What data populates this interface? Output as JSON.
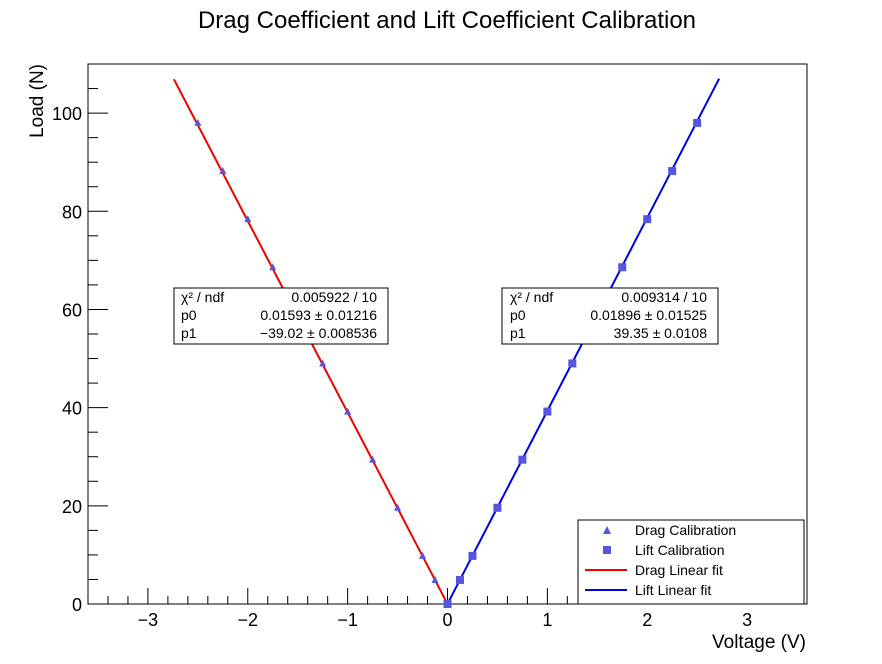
{
  "chart_data": {
    "type": "scatter",
    "title": "Drag Coefficient and Lift Coefficient Calibration",
    "xlabel": "Voltage (V)",
    "ylabel": "Load (N)",
    "xlim": [
      -3.6,
      3.6
    ],
    "ylim": [
      0,
      110
    ],
    "x_ticks": [
      -3,
      -2,
      -1,
      0,
      1,
      2,
      3
    ],
    "x_tick_labels": [
      "−3",
      "−2",
      "−1",
      "0",
      "1",
      "2",
      "3"
    ],
    "y_ticks": [
      0,
      20,
      40,
      60,
      80,
      100
    ],
    "y_tick_labels": [
      "0",
      "20",
      "40",
      "60",
      "80",
      "100"
    ],
    "grid": false,
    "legend_position": "bottom-right",
    "series": [
      {
        "name": "Drag Calibration",
        "kind": "points",
        "marker": "triangle",
        "color": "#5555e0",
        "x": [
          0,
          -0.125,
          -0.25,
          -0.5,
          -0.75,
          -1.0,
          -1.25,
          -1.5,
          -1.75,
          -2.0,
          -2.25,
          -2.5
        ],
        "y": [
          0,
          4.9,
          9.8,
          19.6,
          29.4,
          39.2,
          49.0,
          58.8,
          68.6,
          78.4,
          88.2,
          98.0
        ]
      },
      {
        "name": "Lift Calibration",
        "kind": "points",
        "marker": "square",
        "color": "#5555e0",
        "x": [
          0,
          0.125,
          0.25,
          0.5,
          0.75,
          1.0,
          1.25,
          1.5,
          1.75,
          2.0,
          2.25,
          2.5
        ],
        "y": [
          0,
          4.9,
          9.8,
          19.6,
          29.4,
          39.2,
          49.0,
          58.8,
          68.6,
          78.4,
          88.2,
          98.0
        ]
      },
      {
        "name": "Drag Linear fit",
        "kind": "line",
        "color": "#ee0000",
        "x": [
          -2.74,
          0
        ],
        "y": [
          106.9,
          0.016
        ]
      },
      {
        "name": "Lift Linear fit",
        "kind": "line",
        "color": "#0000dd",
        "x": [
          0,
          2.72
        ],
        "y": [
          0.019,
          107.0
        ]
      }
    ],
    "fit_boxes": [
      {
        "rows": [
          {
            "label": "χ² / ndf",
            "value": "0.005922 / 10"
          },
          {
            "label": "p0",
            "value": "0.01593 ± 0.01216"
          },
          {
            "label": "p1",
            "value": "−39.02 ± 0.008536"
          }
        ]
      },
      {
        "rows": [
          {
            "label": "χ² / ndf",
            "value": "0.009314 / 10"
          },
          {
            "label": "p0",
            "value": "0.01896 ± 0.01525"
          },
          {
            "label": "p1",
            "value": "39.35 ± 0.0108"
          }
        ]
      }
    ]
  }
}
